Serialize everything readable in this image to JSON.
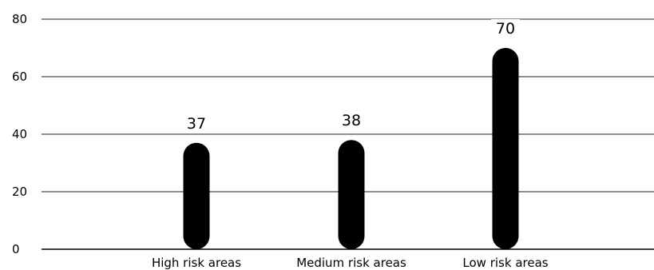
{
  "chart_data": {
    "type": "bar",
    "title": "",
    "xlabel": "",
    "ylabel": "",
    "categories": [
      "High risk areas",
      "Medium risk areas",
      "Low risk areas"
    ],
    "values": [
      37,
      38,
      70
    ],
    "data_labels": [
      "37",
      "38",
      "70"
    ],
    "ylim": [
      0,
      80
    ],
    "yticks": [
      0,
      20,
      40,
      60,
      80
    ],
    "ytick_labels": [
      "0",
      "20",
      "40",
      "60",
      "80"
    ],
    "grid": true,
    "legend": "none",
    "bar_style": "rounded",
    "colors": {
      "bar": "#000000",
      "grid": "#222222",
      "text": "#000000",
      "background": "#ffffff"
    }
  }
}
